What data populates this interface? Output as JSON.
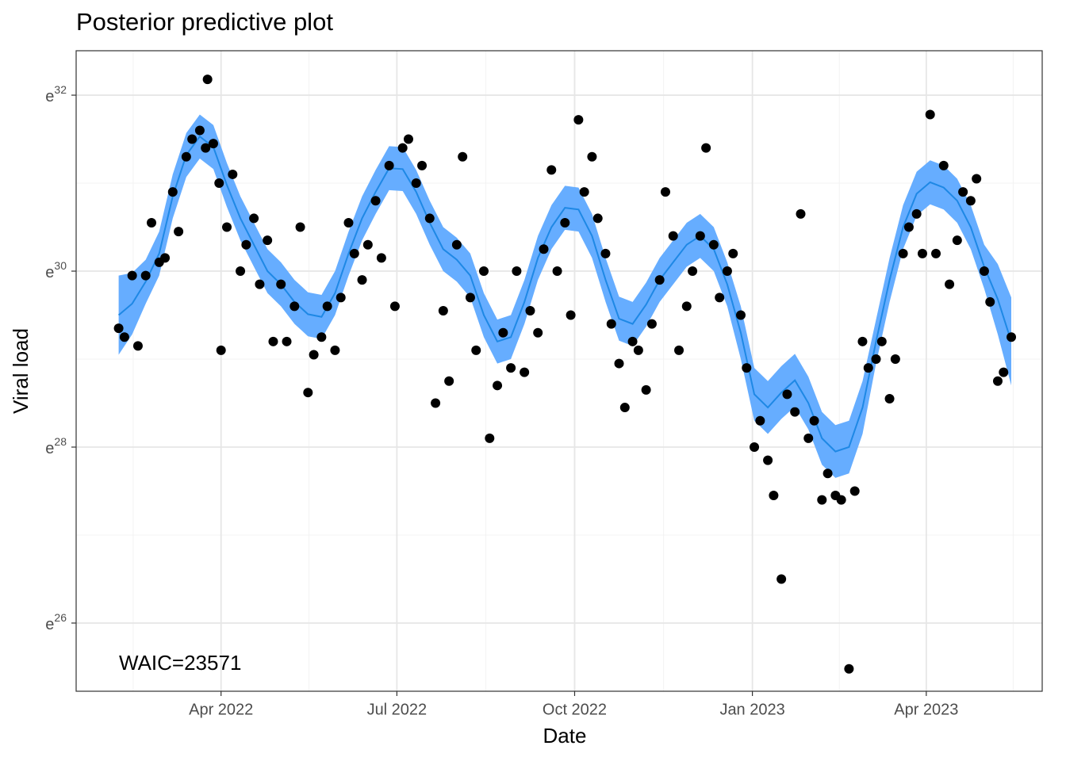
{
  "chart_data": {
    "type": "line",
    "title": "Posterior predictive plot",
    "x_label": "Date",
    "y_label": "Viral load",
    "annotation": "WAIC=23571",
    "grid": true,
    "y_scale": "log",
    "y_tick_base": "e",
    "xlim": [
      "2022-01-16",
      "2023-05-31"
    ],
    "xticks": [
      {
        "value": "2022-04-01",
        "label": "Apr 2022"
      },
      {
        "value": "2022-07-01",
        "label": "Jul 2022"
      },
      {
        "value": "2022-10-01",
        "label": "Oct 2022"
      },
      {
        "value": "2023-01-01",
        "label": "Jan 2023"
      },
      {
        "value": "2023-04-01",
        "label": "Apr 2023"
      }
    ],
    "ylim": [
      25.225,
      32.505
    ],
    "yticks": [
      26,
      28,
      30,
      32
    ],
    "x": [
      "2022-02-07",
      "2022-02-14",
      "2022-02-21",
      "2022-02-28",
      "2022-03-07",
      "2022-03-14",
      "2022-03-21",
      "2022-03-28",
      "2022-04-04",
      "2022-04-11",
      "2022-04-18",
      "2022-04-25",
      "2022-05-02",
      "2022-05-09",
      "2022-05-16",
      "2022-05-23",
      "2022-05-30",
      "2022-06-06",
      "2022-06-13",
      "2022-06-20",
      "2022-06-27",
      "2022-07-04",
      "2022-07-11",
      "2022-07-18",
      "2022-07-25",
      "2022-08-01",
      "2022-08-08",
      "2022-08-15",
      "2022-08-22",
      "2022-08-29",
      "2022-09-05",
      "2022-09-12",
      "2022-09-19",
      "2022-09-26",
      "2022-10-03",
      "2022-10-10",
      "2022-10-17",
      "2022-10-24",
      "2022-10-31",
      "2022-11-07",
      "2022-11-14",
      "2022-11-21",
      "2022-11-28",
      "2022-12-05",
      "2022-12-12",
      "2022-12-19",
      "2022-12-26",
      "2023-01-02",
      "2023-01-09",
      "2023-01-16",
      "2023-01-23",
      "2023-01-30",
      "2023-02-06",
      "2023-02-13",
      "2023-02-20",
      "2023-02-27",
      "2023-03-06",
      "2023-03-13",
      "2023-03-20",
      "2023-03-27",
      "2023-04-03",
      "2023-04-10",
      "2023-04-17",
      "2023-04-24",
      "2023-05-01",
      "2023-05-08",
      "2023-05-15"
    ],
    "band": {
      "color": "#66adff",
      "lower": [
        29.05,
        29.28,
        29.63,
        29.95,
        30.6,
        31.07,
        31.28,
        31.16,
        30.73,
        30.35,
        30.05,
        29.75,
        29.6,
        29.4,
        29.26,
        29.23,
        29.5,
        29.95,
        30.35,
        30.65,
        30.92,
        30.91,
        30.65,
        30.3,
        30.0,
        29.88,
        29.7,
        29.25,
        28.95,
        29.0,
        29.4,
        29.9,
        30.25,
        30.47,
        30.45,
        30.15,
        29.65,
        29.21,
        29.15,
        29.37,
        29.65,
        29.85,
        30.05,
        30.15,
        30.0,
        29.6,
        29.0,
        28.3,
        28.15,
        28.32,
        28.46,
        28.2,
        27.8,
        27.65,
        27.7,
        28.15,
        28.95,
        29.65,
        30.25,
        30.63,
        30.76,
        30.7,
        30.55,
        30.25,
        29.8,
        29.28,
        28.7
      ],
      "upper": [
        29.95,
        29.98,
        30.13,
        30.45,
        31.1,
        31.57,
        31.78,
        31.66,
        31.23,
        30.85,
        30.55,
        30.25,
        30.1,
        29.9,
        29.76,
        29.73,
        30.0,
        30.45,
        30.85,
        31.15,
        31.42,
        31.41,
        31.15,
        30.8,
        30.5,
        30.38,
        30.2,
        29.75,
        29.45,
        29.5,
        29.9,
        30.4,
        30.75,
        30.97,
        30.95,
        30.65,
        30.15,
        29.71,
        29.65,
        29.87,
        30.15,
        30.35,
        30.55,
        30.65,
        30.5,
        30.1,
        29.6,
        28.9,
        28.75,
        28.92,
        29.06,
        28.8,
        28.4,
        28.25,
        28.3,
        28.75,
        29.45,
        30.15,
        30.75,
        31.13,
        31.26,
        31.2,
        31.05,
        30.75,
        30.3,
        30.08,
        29.7
      ]
    },
    "line": {
      "color": "#1e88e5",
      "values": [
        29.5,
        29.63,
        29.88,
        30.2,
        30.85,
        31.32,
        31.53,
        31.41,
        30.98,
        30.6,
        30.3,
        30.0,
        29.85,
        29.65,
        29.51,
        29.48,
        29.75,
        30.2,
        30.6,
        30.9,
        31.17,
        31.16,
        30.9,
        30.55,
        30.25,
        30.13,
        29.95,
        29.5,
        29.2,
        29.25,
        29.65,
        30.15,
        30.5,
        30.72,
        30.7,
        30.4,
        29.9,
        29.46,
        29.4,
        29.62,
        29.9,
        30.1,
        30.3,
        30.4,
        30.25,
        29.85,
        29.3,
        28.6,
        28.45,
        28.62,
        28.76,
        28.5,
        28.1,
        27.95,
        28.0,
        28.45,
        29.2,
        29.9,
        30.5,
        30.88,
        31.01,
        30.95,
        30.8,
        30.5,
        30.05,
        29.68,
        29.2
      ]
    },
    "points": {
      "color": "#000000",
      "x": [
        "2022-02-07",
        "2022-02-10",
        "2022-02-14",
        "2022-02-17",
        "2022-02-21",
        "2022-02-24",
        "2022-02-28",
        "2022-03-03",
        "2022-03-07",
        "2022-03-10",
        "2022-03-14",
        "2022-03-17",
        "2022-03-21",
        "2022-03-24",
        "2022-03-28",
        "2022-03-31",
        "2022-04-04",
        "2022-04-07",
        "2022-04-11",
        "2022-04-14",
        "2022-04-18",
        "2022-04-21",
        "2022-04-25",
        "2022-04-28",
        "2022-05-02",
        "2022-05-05",
        "2022-05-09",
        "2022-05-12",
        "2022-05-16",
        "2022-05-19",
        "2022-05-23",
        "2022-05-26",
        "2022-05-30",
        "2022-06-02",
        "2022-06-06",
        "2022-06-09",
        "2022-06-13",
        "2022-06-16",
        "2022-06-20",
        "2022-06-23",
        "2022-06-27",
        "2022-06-30",
        "2022-07-04",
        "2022-07-07",
        "2022-07-11",
        "2022-07-14",
        "2022-07-18",
        "2022-07-21",
        "2022-07-25",
        "2022-07-28",
        "2022-08-01",
        "2022-08-04",
        "2022-08-08",
        "2022-08-11",
        "2022-08-15",
        "2022-08-18",
        "2022-08-22",
        "2022-08-25",
        "2022-08-29",
        "2022-09-01",
        "2022-09-05",
        "2022-09-08",
        "2022-09-12",
        "2022-09-15",
        "2022-09-19",
        "2022-09-22",
        "2022-09-26",
        "2022-09-29",
        "2022-10-03",
        "2022-10-06",
        "2022-10-10",
        "2022-10-13",
        "2022-10-17",
        "2022-10-20",
        "2022-10-24",
        "2022-10-27",
        "2022-10-31",
        "2022-11-03",
        "2022-11-07",
        "2022-11-10",
        "2022-11-14",
        "2022-11-17",
        "2022-11-21",
        "2022-11-24",
        "2022-11-28",
        "2022-12-01",
        "2022-12-05",
        "2022-12-08",
        "2022-12-12",
        "2022-12-15",
        "2022-12-19",
        "2022-12-22",
        "2022-12-26",
        "2022-12-29",
        "2023-01-02",
        "2023-01-05",
        "2023-01-09",
        "2023-01-12",
        "2023-01-16",
        "2023-01-19",
        "2023-01-23",
        "2023-01-26",
        "2023-01-30",
        "2023-02-02",
        "2023-02-06",
        "2023-02-09",
        "2023-02-13",
        "2023-02-16",
        "2023-02-20",
        "2023-02-23",
        "2023-02-27",
        "2023-03-02",
        "2023-03-06",
        "2023-03-09",
        "2023-03-13",
        "2023-03-16",
        "2023-03-20",
        "2023-03-23",
        "2023-03-27",
        "2023-03-30",
        "2023-04-03",
        "2023-04-06",
        "2023-04-10",
        "2023-04-13",
        "2023-04-17",
        "2023-04-20",
        "2023-04-24",
        "2023-04-27",
        "2023-05-01",
        "2023-05-04",
        "2023-05-08",
        "2023-05-11",
        "2023-05-15",
        "2022-03-25",
        "2022-04-01"
      ],
      "values": [
        29.35,
        29.25,
        29.95,
        29.15,
        29.95,
        30.55,
        30.1,
        30.15,
        30.9,
        30.45,
        31.3,
        31.5,
        31.6,
        31.4,
        31.45,
        31.0,
        30.5,
        31.1,
        30.0,
        30.3,
        30.6,
        29.85,
        30.35,
        29.2,
        29.85,
        29.2,
        29.6,
        30.5,
        28.62,
        29.05,
        29.25,
        29.6,
        29.1,
        29.7,
        30.55,
        30.2,
        29.9,
        30.3,
        30.8,
        30.15,
        31.2,
        29.6,
        31.4,
        31.5,
        31.0,
        31.2,
        30.6,
        28.5,
        29.55,
        28.75,
        30.3,
        31.3,
        29.7,
        29.1,
        30.0,
        28.1,
        28.7,
        29.3,
        28.9,
        30.0,
        28.85,
        29.55,
        29.3,
        30.25,
        31.15,
        30.0,
        30.55,
        29.5,
        31.72,
        30.9,
        31.3,
        30.6,
        30.2,
        29.4,
        28.95,
        28.45,
        29.2,
        29.1,
        28.65,
        29.4,
        29.9,
        30.9,
        30.4,
        29.1,
        29.6,
        30.0,
        30.4,
        31.4,
        30.3,
        29.7,
        30.0,
        30.2,
        29.5,
        28.9,
        28.0,
        28.3,
        27.85,
        27.45,
        26.5,
        28.6,
        28.4,
        30.65,
        28.1,
        28.3,
        27.4,
        27.7,
        27.45,
        27.4,
        25.48,
        27.5,
        29.2,
        28.9,
        29.0,
        29.2,
        28.55,
        29.0,
        30.2,
        30.5,
        30.65,
        30.2,
        31.78,
        30.2,
        31.2,
        29.85,
        30.35,
        30.9,
        30.8,
        31.05,
        30.0,
        29.65,
        28.75,
        28.85,
        29.25,
        32.18,
        29.1
      ]
    }
  }
}
